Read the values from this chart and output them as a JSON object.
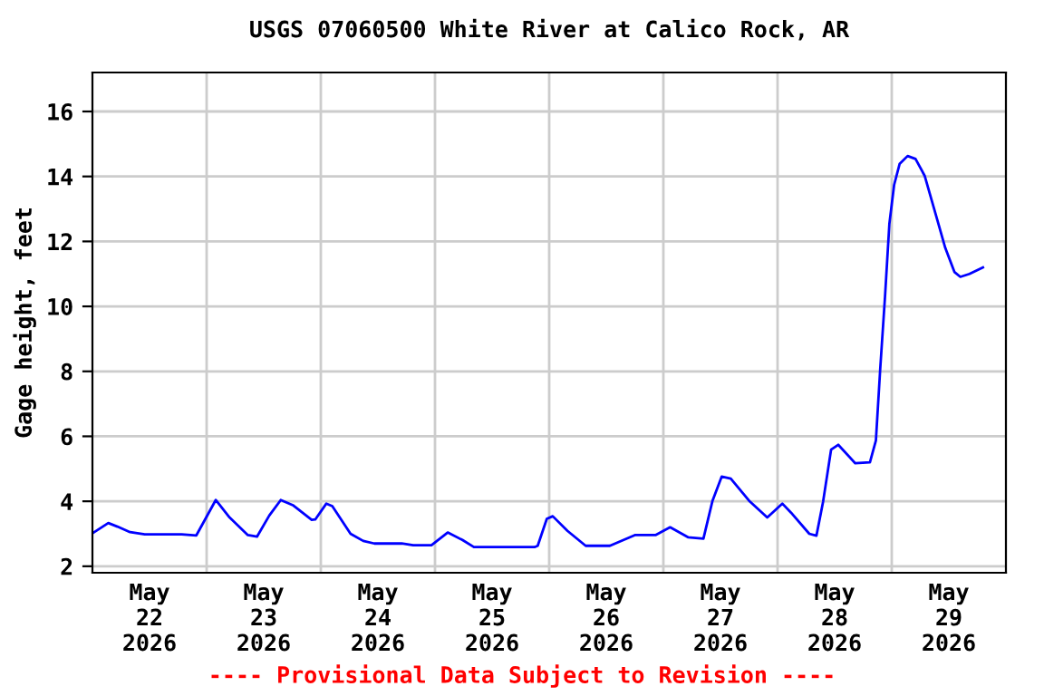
{
  "chart_data": {
    "type": "line",
    "title": "USGS 07060500 White River at Calico Rock, AR",
    "ylabel": "Gage height, feet",
    "annotations": [
      "---- Provisional Data Subject to Revision ----"
    ],
    "x": [
      "2026-05-22T00:15",
      "2026-05-22T03:20",
      "2026-05-22T05:15",
      "2026-05-22T07:55",
      "2026-05-22T11:00",
      "2026-05-22T18:45",
      "2026-05-22T21:50",
      "2026-05-22T23:45",
      "2026-05-23T01:55",
      "2026-05-23T04:50",
      "2026-05-23T08:40",
      "2026-05-23T10:35",
      "2026-05-23T13:10",
      "2026-05-23T15:35",
      "2026-05-23T18:15",
      "2026-05-23T22:05",
      "2026-05-23T22:50",
      "2026-05-24T01:10",
      "2026-05-24T02:25",
      "2026-05-24T06:15",
      "2026-05-24T08:55",
      "2026-05-24T11:15",
      "2026-05-24T17:00",
      "2026-05-24T19:25",
      "2026-05-24T23:15",
      "2026-05-25T02:40",
      "2026-05-25T05:45",
      "2026-05-25T08:10",
      "2026-05-25T20:55",
      "2026-05-25T21:35",
      "2026-05-25T23:30",
      "2026-05-26T00:45",
      "2026-05-26T03:50",
      "2026-05-26T07:40",
      "2026-05-26T12:45",
      "2026-05-26T18:00",
      "2026-05-26T22:20",
      "2026-05-27T01:25",
      "2026-05-27T05:15",
      "2026-05-27T08:25",
      "2026-05-27T10:20",
      "2026-05-27T12:15",
      "2026-05-27T14:10",
      "2026-05-27T18:00",
      "2026-05-27T21:50",
      "2026-05-28T01:00",
      "2026-05-28T02:50",
      "2026-05-28T06:40",
      "2026-05-28T08:10",
      "2026-05-28T09:35",
      "2026-05-28T11:15",
      "2026-05-28T12:45",
      "2026-05-28T16:20",
      "2026-05-28T19:25",
      "2026-05-28T20:40",
      "2026-05-28T21:35",
      "2026-05-28T22:35",
      "2026-05-28T23:30",
      "2026-05-29T00:30",
      "2026-05-29T01:40",
      "2026-05-29T03:20",
      "2026-05-29T05:00",
      "2026-05-29T06:55",
      "2026-05-29T08:55",
      "2026-05-29T11:15",
      "2026-05-29T13:10",
      "2026-05-29T14:25",
      "2026-05-29T16:20",
      "2026-05-29T19:10"
    ],
    "series": [
      {
        "color": "#0000ff",
        "values": [
          3.04,
          3.33,
          3.22,
          3.05,
          2.98,
          2.98,
          2.95,
          3.46,
          4.04,
          3.5,
          2.96,
          2.91,
          3.56,
          4.04,
          3.87,
          3.43,
          3.44,
          3.93,
          3.85,
          3.0,
          2.78,
          2.7,
          2.7,
          2.65,
          2.65,
          3.04,
          2.81,
          2.59,
          2.59,
          2.63,
          3.46,
          3.54,
          3.09,
          2.63,
          2.63,
          2.96,
          2.96,
          3.2,
          2.89,
          2.85,
          4.02,
          4.76,
          4.7,
          4.02,
          3.5,
          3.93,
          3.65,
          3.0,
          2.94,
          4.0,
          5.59,
          5.74,
          5.17,
          5.2,
          5.87,
          8.09,
          10.3,
          12.54,
          13.74,
          14.39,
          14.63,
          14.54,
          14.02,
          13.0,
          11.8,
          11.06,
          10.91,
          11.0,
          11.2
        ]
      }
    ],
    "xlim": [
      "2026-05-22T00:00",
      "2026-05-30T00:00"
    ],
    "xticks": [
      {
        "value": "2026-05-22T12:00",
        "label": "May\n22\n2026"
      },
      {
        "value": "2026-05-23T00:00",
        "label": null
      },
      {
        "value": "2026-05-23T12:00",
        "label": "May\n23\n2026"
      },
      {
        "value": "2026-05-24T00:00",
        "label": null
      },
      {
        "value": "2026-05-24T12:00",
        "label": "May\n24\n2026"
      },
      {
        "value": "2026-05-25T00:00",
        "label": null
      },
      {
        "value": "2026-05-25T12:00",
        "label": "May\n25\n2026"
      },
      {
        "value": "2026-05-26T00:00",
        "label": null
      },
      {
        "value": "2026-05-26T12:00",
        "label": "May\n26\n2026"
      },
      {
        "value": "2026-05-27T00:00",
        "label": null
      },
      {
        "value": "2026-05-27T12:00",
        "label": "May\n27\n2026"
      },
      {
        "value": "2026-05-28T00:00",
        "label": null
      },
      {
        "value": "2026-05-28T12:00",
        "label": "May\n28\n2026"
      },
      {
        "value": "2026-05-29T00:00",
        "label": null
      },
      {
        "value": "2026-05-29T12:00",
        "label": "May\n29\n2026"
      }
    ],
    "ylim": [
      1.8,
      17.2
    ],
    "yticks": [
      2,
      4,
      6,
      8,
      10,
      12,
      14,
      16
    ],
    "grid": true,
    "line_style": "solid"
  }
}
